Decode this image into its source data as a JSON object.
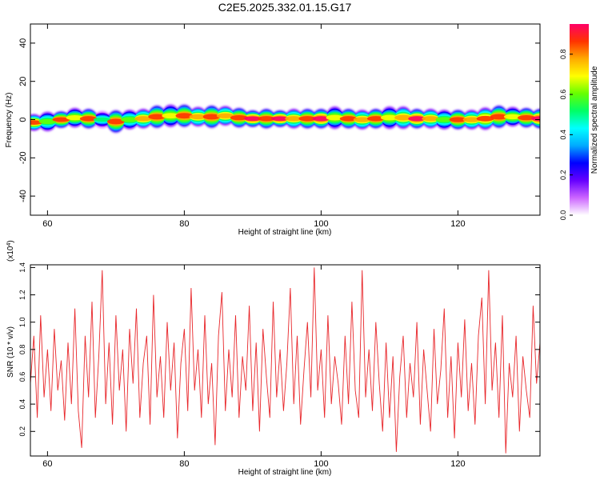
{
  "title": "C2E5.2025.332.01.15.G17",
  "chart_data": [
    {
      "type": "heatmap",
      "xlabel": "Height of straight line (km)",
      "ylabel": "Frequency (Hz)",
      "xlim": [
        57.5,
        132
      ],
      "ylim": [
        -50,
        50
      ],
      "x_ticks": [
        60,
        80,
        100,
        120
      ],
      "y_ticks": [
        40,
        20,
        0,
        -20,
        -40
      ],
      "colorbar": {
        "label": "Normalized spectral amplitude",
        "range": [
          0,
          0.95
        ],
        "ticks": [
          "0.0",
          "0.2",
          "0.4",
          "0.6",
          "0.8"
        ],
        "colors": [
          "#ffffff",
          "#cc66ff",
          "#6600ff",
          "#0000ff",
          "#00aaff",
          "#00ffff",
          "#00ff66",
          "#66ff00",
          "#ffff00",
          "#ffaa00",
          "#ff3300",
          "#ff0066"
        ]
      },
      "ridge": {
        "x": [
          58,
          60,
          62,
          64,
          66,
          68,
          70,
          72,
          74,
          76,
          78,
          80,
          82,
          84,
          86,
          88,
          90,
          92,
          94,
          96,
          98,
          100,
          102,
          104,
          106,
          108,
          110,
          112,
          114,
          116,
          118,
          120,
          122,
          124,
          126,
          128,
          130,
          132
        ],
        "freq": [
          -1.5,
          -1.0,
          0.0,
          1.0,
          0.5,
          0.0,
          -1.0,
          0.0,
          0.5,
          1.5,
          2.0,
          2.0,
          1.5,
          1.5,
          2.0,
          1.0,
          0.5,
          0.5,
          0.5,
          0.5,
          0.5,
          0.5,
          1.0,
          0.5,
          0.0,
          0.5,
          1.0,
          1.0,
          0.5,
          0.5,
          0.0,
          0.0,
          0.0,
          0.5,
          1.5,
          1.5,
          1.0,
          0.5
        ],
        "peak_amplitude": [
          0.85,
          0.6,
          0.9,
          0.7,
          0.9,
          0.5,
          0.9,
          0.6,
          0.8,
          0.9,
          0.7,
          0.9,
          0.8,
          0.9,
          0.8,
          0.9,
          0.95,
          0.9,
          0.95,
          0.8,
          0.9,
          0.95,
          0.7,
          0.9,
          0.8,
          0.9,
          0.7,
          0.8,
          0.95,
          0.8,
          0.6,
          0.9,
          0.8,
          0.85,
          0.9,
          0.7,
          0.9,
          0.95
        ],
        "width_hz": [
          2.5,
          3,
          2.5,
          3,
          3,
          2.5,
          3.5,
          3,
          3,
          3.5,
          3.5,
          3.5,
          3,
          3.5,
          3,
          3,
          2.5,
          3,
          2.5,
          3,
          3,
          3,
          3.5,
          3,
          3,
          3,
          3.5,
          3.5,
          3,
          3,
          3,
          3,
          3,
          3.5,
          3.5,
          3,
          3,
          3
        ]
      }
    },
    {
      "type": "line",
      "xlabel": "Height of straight line (km)",
      "ylabel": "SNR (10 * v/v)",
      "y_multiplier": "(x10",
      "y_multiplier_exponent": "4",
      "y_multiplier_close": ")",
      "xlim": [
        57.5,
        132
      ],
      "ylim": [
        0.02,
        1.42
      ],
      "x_ticks": [
        60,
        80,
        100,
        120
      ],
      "y_ticks": [
        "0.2",
        "0.4",
        "0.6",
        "0.8",
        "1.0",
        "1.2",
        "1.4"
      ],
      "line_color": "#e8262a",
      "series": [
        {
          "x": [
            57.5,
            58,
            58.5,
            59,
            59.5,
            60,
            60.5,
            61,
            61.5,
            62,
            62.5,
            63,
            63.5,
            64,
            64.5,
            65,
            65.5,
            66,
            66.5,
            67,
            67.5,
            68,
            68.5,
            69,
            69.5,
            70,
            70.5,
            71,
            71.5,
            72,
            72.5,
            73,
            73.5,
            74,
            74.5,
            75,
            75.5,
            76,
            76.5,
            77,
            77.5,
            78,
            78.5,
            79,
            79.5,
            80,
            80.5,
            81,
            81.5,
            82,
            82.5,
            83,
            83.5,
            84,
            84.5,
            85,
            85.5,
            86,
            86.5,
            87,
            87.5,
            88,
            88.5,
            89,
            89.5,
            90,
            90.5,
            91,
            91.5,
            92,
            92.5,
            93,
            93.5,
            94,
            94.5,
            95,
            95.5,
            96,
            96.5,
            97,
            97.5,
            98,
            98.5,
            99,
            99.5,
            100,
            100.5,
            101,
            101.5,
            102,
            102.5,
            103,
            103.5,
            104,
            104.5,
            105,
            105.5,
            106,
            106.5,
            107,
            107.5,
            108,
            108.5,
            109,
            109.5,
            110,
            110.5,
            111,
            111.5,
            112,
            112.5,
            113,
            113.5,
            114,
            114.5,
            115,
            115.5,
            116,
            116.5,
            117,
            117.5,
            118,
            118.5,
            119,
            119.5,
            120,
            120.5,
            121,
            121.5,
            122,
            122.5,
            123,
            123.5,
            124,
            124.5,
            125,
            125.5,
            126,
            126.5,
            127,
            127.5,
            128,
            128.5,
            129,
            129.5,
            130,
            130.5,
            131,
            131.5,
            132
          ],
          "values": [
            0.55,
            0.9,
            0.3,
            1.05,
            0.45,
            0.8,
            0.35,
            0.95,
            0.5,
            0.72,
            0.28,
            0.85,
            0.4,
            1.1,
            0.35,
            0.08,
            0.9,
            0.45,
            1.15,
            0.3,
            0.75,
            1.38,
            0.4,
            0.85,
            0.25,
            1.05,
            0.5,
            0.8,
            0.2,
            0.95,
            0.55,
            1.1,
            0.3,
            0.7,
            0.9,
            0.25,
            1.2,
            0.45,
            0.75,
            0.3,
            1.0,
            0.5,
            0.85,
            0.15,
            0.7,
            0.95,
            0.35,
            1.25,
            0.5,
            0.8,
            0.3,
            1.05,
            0.4,
            0.7,
            0.1,
            0.9,
            1.22,
            0.35,
            0.8,
            0.45,
            1.05,
            0.3,
            0.75,
            0.5,
            1.12,
            0.35,
            0.85,
            0.2,
            0.95,
            0.6,
            0.3,
            1.15,
            0.45,
            0.8,
            0.35,
            0.7,
            1.25,
            0.4,
            0.9,
            0.25,
            0.65,
            1.0,
            0.45,
            1.4,
            0.5,
            0.8,
            0.3,
            1.05,
            0.4,
            0.75,
            0.55,
            0.25,
            0.9,
            0.4,
            1.15,
            0.5,
            0.3,
            1.38,
            0.45,
            0.8,
            0.35,
            1.0,
            0.55,
            0.2,
            0.85,
            0.3,
            0.75,
            0.05,
            0.6,
            0.9,
            0.3,
            0.7,
            0.45,
            1.0,
            0.25,
            0.8,
            0.5,
            0.2,
            0.95,
            0.4,
            0.65,
            1.1,
            0.3,
            0.75,
            0.15,
            0.85,
            0.45,
            1.02,
            0.35,
            0.7,
            0.25,
            0.9,
            1.18,
            0.4,
            1.38,
            0.5,
            0.85,
            0.3,
            1.05,
            0.04,
            0.7,
            0.45,
            0.9,
            0.2,
            0.75,
            0.5,
            0.3,
            1.12,
            0.55,
            0.85
          ]
        }
      ]
    }
  ]
}
